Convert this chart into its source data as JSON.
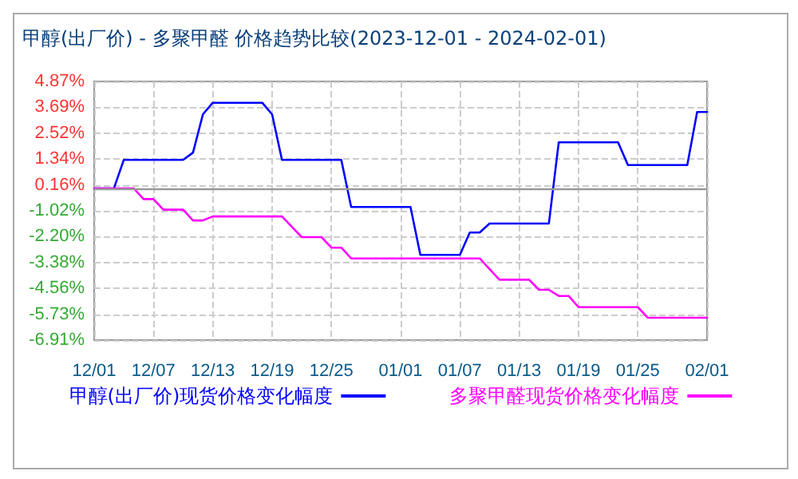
{
  "chart_data": {
    "type": "line",
    "title": "甲醇(出厂价) - 多聚甲醛 价格趋势比较(2023-12-01 - 2024-02-01)",
    "series": [
      {
        "name": "甲醇(出厂价)现货价格变化幅度",
        "color": "#0000ff",
        "x": [
          "2023-12-01",
          "2023-12-03",
          "2023-12-04",
          "2023-12-10",
          "2023-12-11",
          "2023-12-12",
          "2023-12-13",
          "2023-12-18",
          "2023-12-19",
          "2023-12-20",
          "2023-12-26",
          "2023-12-27",
          "2024-01-02",
          "2024-01-03",
          "2024-01-07",
          "2024-01-08",
          "2024-01-09",
          "2024-01-10",
          "2024-01-16",
          "2024-01-17",
          "2024-01-23",
          "2024-01-24",
          "2024-01-30",
          "2024-01-31",
          "2024-02-01"
        ],
        "values": [
          0,
          0,
          1.3,
          1.3,
          1.63,
          3.37,
          3.9,
          3.9,
          3.37,
          1.3,
          1.3,
          -0.85,
          -0.85,
          -3.03,
          -3.03,
          -2.01,
          -2.01,
          -1.6,
          -1.6,
          2.1,
          2.1,
          1.06,
          1.06,
          3.48,
          3.48
        ]
      },
      {
        "name": "多聚甲醛现货价格变化幅度",
        "color": "#ff00ff",
        "x": [
          "2023-12-01",
          "2023-12-05",
          "2023-12-06",
          "2023-12-07",
          "2023-12-08",
          "2023-12-10",
          "2023-12-11",
          "2023-12-12",
          "2023-12-13",
          "2023-12-20",
          "2023-12-22",
          "2023-12-24",
          "2023-12-25",
          "2023-12-26",
          "2023-12-27",
          "2024-01-09",
          "2024-01-11",
          "2024-01-14",
          "2024-01-15",
          "2024-01-16",
          "2024-01-17",
          "2024-01-18",
          "2024-01-19",
          "2024-01-25",
          "2024-01-26",
          "2024-02-01"
        ],
        "values": [
          0,
          0,
          -0.49,
          -0.49,
          -0.97,
          -0.97,
          -1.46,
          -1.46,
          -1.28,
          -1.28,
          -2.22,
          -2.22,
          -2.7,
          -2.7,
          -3.19,
          -3.19,
          -4.16,
          -4.16,
          -4.62,
          -4.62,
          -4.9,
          -4.9,
          -5.41,
          -5.41,
          -5.89,
          -5.89
        ]
      }
    ],
    "xlim": [
      "2023-12-01",
      "2024-02-01"
    ],
    "xticks": [
      {
        "value": "2023-12-01",
        "label": "12/01"
      },
      {
        "value": "2023-12-07",
        "label": "12/07"
      },
      {
        "value": "2023-12-13",
        "label": "12/13"
      },
      {
        "value": "2023-12-19",
        "label": "12/19"
      },
      {
        "value": "2023-12-25",
        "label": "12/25"
      },
      {
        "value": "2024-01-01",
        "label": "01/01"
      },
      {
        "value": "2024-01-07",
        "label": "01/07"
      },
      {
        "value": "2024-01-13",
        "label": "01/13"
      },
      {
        "value": "2024-01-19",
        "label": "01/19"
      },
      {
        "value": "2024-01-25",
        "label": "01/25"
      },
      {
        "value": "2024-02-01",
        "label": "02/01"
      }
    ],
    "ylim": [
      -6.91,
      4.87
    ],
    "yticks": [
      {
        "value": -6.91,
        "label": "-6.91%"
      },
      {
        "value": -5.73,
        "label": "-5.73%"
      },
      {
        "value": -4.56,
        "label": "-4.56%"
      },
      {
        "value": -3.38,
        "label": "-3.38%"
      },
      {
        "value": -2.2,
        "label": "-2.20%"
      },
      {
        "value": -1.02,
        "label": "-1.02%"
      },
      {
        "value": 0.16,
        "label": "0.16%"
      },
      {
        "value": 1.34,
        "label": "1.34%"
      },
      {
        "value": 2.52,
        "label": "2.52%"
      },
      {
        "value": 3.69,
        "label": "3.69%"
      },
      {
        "value": 4.87,
        "label": "4.87%"
      }
    ],
    "ref_lines": [
      {
        "axis": "y",
        "value": 0,
        "color": "#999999"
      }
    ],
    "grid": true,
    "legend": "bottom",
    "marker": "none",
    "line_style": "solid"
  }
}
